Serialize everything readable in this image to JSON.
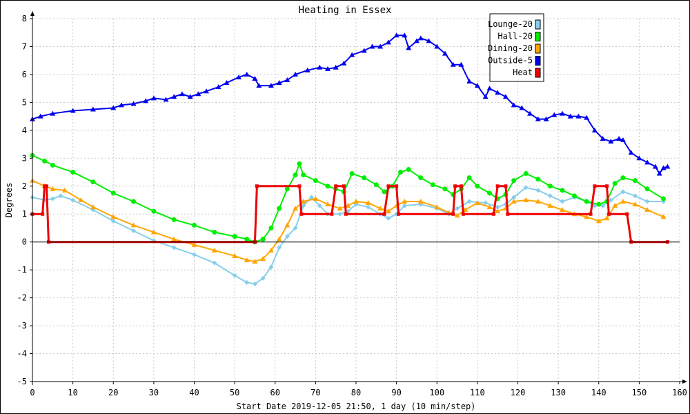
{
  "chart_data": {
    "type": "line",
    "title": "Heating in Essex",
    "xlabel": "Start Date 2019-12-05 21:50, 1 day (10 min/step)",
    "ylabel": "Degrees",
    "xlim": [
      0,
      160
    ],
    "ylim": [
      -5,
      8
    ],
    "xticks": [
      0,
      10,
      20,
      30,
      40,
      50,
      60,
      70,
      80,
      90,
      100,
      110,
      120,
      130,
      140,
      150,
      160
    ],
    "yticks": [
      -5,
      -4,
      -3,
      -2,
      -1,
      0,
      1,
      2,
      3,
      4,
      5,
      6,
      7,
      8
    ],
    "grid": true,
    "legend_position": "top-right",
    "series": [
      {
        "name": "Lounge-20",
        "color": "#87ceeb",
        "marker": "diamond",
        "points": [
          [
            0,
            1.6
          ],
          [
            3,
            1.5
          ],
          [
            5,
            1.55
          ],
          [
            7,
            1.65
          ],
          [
            10,
            1.5
          ],
          [
            15,
            1.15
          ],
          [
            20,
            0.75
          ],
          [
            25,
            0.4
          ],
          [
            30,
            0.05
          ],
          [
            35,
            -0.2
          ],
          [
            40,
            -0.45
          ],
          [
            45,
            -0.75
          ],
          [
            50,
            -1.2
          ],
          [
            53,
            -1.45
          ],
          [
            55,
            -1.5
          ],
          [
            57,
            -1.3
          ],
          [
            59,
            -0.9
          ],
          [
            61,
            -0.2
          ],
          [
            63,
            0.2
          ],
          [
            65,
            0.5
          ],
          [
            67,
            1.3
          ],
          [
            69,
            1.6
          ],
          [
            71,
            1.3
          ],
          [
            73,
            1.0
          ],
          [
            76,
            1.0
          ],
          [
            78,
            1.1
          ],
          [
            80,
            1.35
          ],
          [
            83,
            1.25
          ],
          [
            86,
            1.0
          ],
          [
            88,
            0.85
          ],
          [
            90,
            1.0
          ],
          [
            92,
            1.3
          ],
          [
            96,
            1.35
          ],
          [
            100,
            1.2
          ],
          [
            103,
            1.0
          ],
          [
            105,
            1.2
          ],
          [
            108,
            1.45
          ],
          [
            112,
            1.4
          ],
          [
            115,
            1.25
          ],
          [
            117,
            1.35
          ],
          [
            119,
            1.6
          ],
          [
            122,
            1.95
          ],
          [
            125,
            1.85
          ],
          [
            128,
            1.65
          ],
          [
            131,
            1.45
          ],
          [
            134,
            1.6
          ],
          [
            137,
            1.45
          ],
          [
            139,
            1.3
          ],
          [
            141,
            1.3
          ],
          [
            143,
            1.5
          ],
          [
            146,
            1.8
          ],
          [
            149,
            1.65
          ],
          [
            152,
            1.45
          ],
          [
            156,
            1.45
          ]
        ]
      },
      {
        "name": "Hall-20",
        "color": "#00ee00",
        "marker": "circle",
        "points": [
          [
            0,
            3.1
          ],
          [
            3,
            2.9
          ],
          [
            5,
            2.75
          ],
          [
            10,
            2.5
          ],
          [
            15,
            2.15
          ],
          [
            20,
            1.75
          ],
          [
            25,
            1.45
          ],
          [
            30,
            1.1
          ],
          [
            35,
            0.8
          ],
          [
            40,
            0.6
          ],
          [
            45,
            0.35
          ],
          [
            50,
            0.2
          ],
          [
            53,
            0.1
          ],
          [
            55,
            0.0
          ],
          [
            57,
            0.1
          ],
          [
            59,
            0.5
          ],
          [
            61,
            1.2
          ],
          [
            63,
            1.9
          ],
          [
            65,
            2.4
          ],
          [
            66,
            2.8
          ],
          [
            67,
            2.4
          ],
          [
            70,
            2.2
          ],
          [
            73,
            2.0
          ],
          [
            75,
            1.9
          ],
          [
            77,
            1.8
          ],
          [
            79,
            2.45
          ],
          [
            82,
            2.3
          ],
          [
            85,
            2.05
          ],
          [
            87,
            1.8
          ],
          [
            89,
            2.0
          ],
          [
            91,
            2.5
          ],
          [
            93,
            2.6
          ],
          [
            96,
            2.3
          ],
          [
            99,
            2.05
          ],
          [
            102,
            1.9
          ],
          [
            104,
            1.7
          ],
          [
            106,
            1.9
          ],
          [
            108,
            2.3
          ],
          [
            110,
            2.0
          ],
          [
            113,
            1.75
          ],
          [
            115,
            1.55
          ],
          [
            117,
            1.7
          ],
          [
            119,
            2.2
          ],
          [
            122,
            2.45
          ],
          [
            125,
            2.25
          ],
          [
            128,
            2.0
          ],
          [
            131,
            1.85
          ],
          [
            134,
            1.65
          ],
          [
            137,
            1.45
          ],
          [
            140,
            1.35
          ],
          [
            142,
            1.45
          ],
          [
            144,
            2.1
          ],
          [
            146,
            2.3
          ],
          [
            149,
            2.2
          ],
          [
            152,
            1.9
          ],
          [
            156,
            1.55
          ]
        ]
      },
      {
        "name": "Dining-20",
        "color": "#ffa500",
        "marker": "triangle",
        "points": [
          [
            0,
            2.2
          ],
          [
            3,
            2.0
          ],
          [
            5,
            1.9
          ],
          [
            8,
            1.85
          ],
          [
            12,
            1.5
          ],
          [
            15,
            1.25
          ],
          [
            20,
            0.9
          ],
          [
            25,
            0.6
          ],
          [
            30,
            0.35
          ],
          [
            35,
            0.1
          ],
          [
            40,
            -0.1
          ],
          [
            45,
            -0.3
          ],
          [
            50,
            -0.5
          ],
          [
            53,
            -0.65
          ],
          [
            55,
            -0.7
          ],
          [
            57,
            -0.6
          ],
          [
            59,
            -0.3
          ],
          [
            61,
            0.1
          ],
          [
            63,
            0.6
          ],
          [
            65,
            1.2
          ],
          [
            67,
            1.45
          ],
          [
            70,
            1.55
          ],
          [
            73,
            1.35
          ],
          [
            76,
            1.2
          ],
          [
            78,
            1.3
          ],
          [
            80,
            1.45
          ],
          [
            83,
            1.4
          ],
          [
            86,
            1.2
          ],
          [
            88,
            1.1
          ],
          [
            90,
            1.3
          ],
          [
            92,
            1.45
          ],
          [
            96,
            1.45
          ],
          [
            100,
            1.25
          ],
          [
            103,
            1.05
          ],
          [
            105,
            0.95
          ],
          [
            107,
            1.15
          ],
          [
            110,
            1.4
          ],
          [
            113,
            1.25
          ],
          [
            115,
            1.1
          ],
          [
            117,
            1.2
          ],
          [
            119,
            1.45
          ],
          [
            122,
            1.5
          ],
          [
            125,
            1.45
          ],
          [
            128,
            1.3
          ],
          [
            131,
            1.15
          ],
          [
            134,
            1.0
          ],
          [
            137,
            0.9
          ],
          [
            140,
            0.75
          ],
          [
            142,
            0.85
          ],
          [
            144,
            1.3
          ],
          [
            146,
            1.45
          ],
          [
            149,
            1.35
          ],
          [
            152,
            1.15
          ],
          [
            156,
            0.9
          ]
        ]
      },
      {
        "name": "Outside-5",
        "color": "#0000ee",
        "marker": "triangle",
        "points": [
          [
            0,
            4.4
          ],
          [
            2,
            4.5
          ],
          [
            5,
            4.6
          ],
          [
            10,
            4.7
          ],
          [
            15,
            4.75
          ],
          [
            20,
            4.8
          ],
          [
            22,
            4.9
          ],
          [
            25,
            4.95
          ],
          [
            28,
            5.05
          ],
          [
            30,
            5.15
          ],
          [
            33,
            5.1
          ],
          [
            35,
            5.2
          ],
          [
            37,
            5.3
          ],
          [
            39,
            5.2
          ],
          [
            41,
            5.3
          ],
          [
            43,
            5.4
          ],
          [
            46,
            5.55
          ],
          [
            48,
            5.7
          ],
          [
            51,
            5.9
          ],
          [
            53,
            6.0
          ],
          [
            55,
            5.85
          ],
          [
            56,
            5.6
          ],
          [
            59,
            5.6
          ],
          [
            61,
            5.7
          ],
          [
            63,
            5.8
          ],
          [
            65,
            6.0
          ],
          [
            68,
            6.15
          ],
          [
            71,
            6.25
          ],
          [
            73,
            6.2
          ],
          [
            75,
            6.25
          ],
          [
            77,
            6.4
          ],
          [
            79,
            6.7
          ],
          [
            82,
            6.85
          ],
          [
            84,
            7.0
          ],
          [
            86,
            7.0
          ],
          [
            88,
            7.15
          ],
          [
            90,
            7.4
          ],
          [
            92,
            7.4
          ],
          [
            93,
            6.95
          ],
          [
            95,
            7.2
          ],
          [
            96,
            7.3
          ],
          [
            98,
            7.2
          ],
          [
            100,
            7.0
          ],
          [
            102,
            6.75
          ],
          [
            104,
            6.35
          ],
          [
            106,
            6.35
          ],
          [
            108,
            5.75
          ],
          [
            110,
            5.6
          ],
          [
            112,
            5.2
          ],
          [
            113,
            5.5
          ],
          [
            115,
            5.35
          ],
          [
            117,
            5.2
          ],
          [
            119,
            4.9
          ],
          [
            121,
            4.8
          ],
          [
            123,
            4.6
          ],
          [
            125,
            4.4
          ],
          [
            127,
            4.4
          ],
          [
            129,
            4.55
          ],
          [
            131,
            4.6
          ],
          [
            133,
            4.5
          ],
          [
            135,
            4.5
          ],
          [
            137,
            4.45
          ],
          [
            139,
            4.0
          ],
          [
            141,
            3.7
          ],
          [
            143,
            3.6
          ],
          [
            145,
            3.7
          ],
          [
            146,
            3.65
          ],
          [
            148,
            3.2
          ],
          [
            150,
            3.0
          ],
          [
            152,
            2.85
          ],
          [
            154,
            2.7
          ],
          [
            155,
            2.45
          ],
          [
            156,
            2.65
          ],
          [
            157,
            2.7
          ]
        ]
      },
      {
        "name": "Heat",
        "color": "#ee0000",
        "marker": "square",
        "points": [
          [
            0,
            1
          ],
          [
            2.5,
            1
          ],
          [
            3,
            2
          ],
          [
            3.5,
            2
          ],
          [
            4,
            0
          ],
          [
            55,
            0
          ],
          [
            55.5,
            2
          ],
          [
            66,
            2
          ],
          [
            66.5,
            1
          ],
          [
            74,
            1
          ],
          [
            75,
            2
          ],
          [
            77,
            2
          ],
          [
            77.5,
            1
          ],
          [
            87,
            1
          ],
          [
            88,
            2
          ],
          [
            90,
            2
          ],
          [
            90.5,
            1
          ],
          [
            104,
            1
          ],
          [
            104.5,
            2
          ],
          [
            106,
            2
          ],
          [
            106.5,
            1
          ],
          [
            114,
            1
          ],
          [
            115,
            2
          ],
          [
            117,
            2
          ],
          [
            117.5,
            1
          ],
          [
            138,
            1
          ],
          [
            139,
            2
          ],
          [
            142,
            2
          ],
          [
            142.5,
            1
          ],
          [
            147,
            1
          ],
          [
            148,
            0
          ],
          [
            157,
            0
          ]
        ]
      }
    ]
  }
}
